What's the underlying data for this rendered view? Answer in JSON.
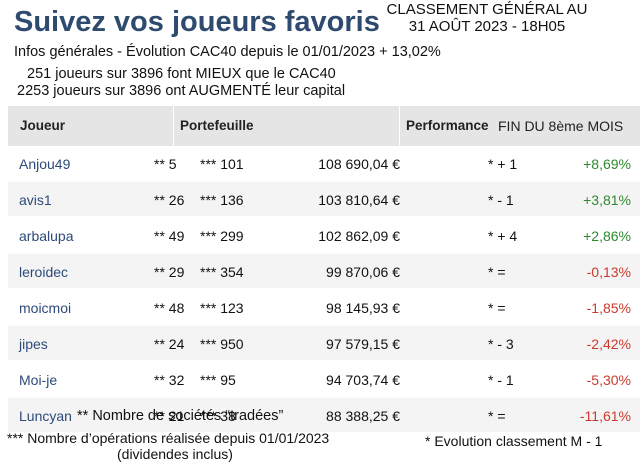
{
  "header": {
    "title": "Suivez vos joueurs favoris",
    "classement_line1": "CLASSEMENT GÉNÉRAL AU",
    "classement_line2": "31 AOÛT 2023 - 18H05",
    "info_line": "Infos générales - Évolution CAC40 depuis le 01/01/2023 + 13,02%",
    "stat_mieux": "251 joueurs sur 3896 font MIEUX que le CAC40",
    "stat_augmente": "2253 joueurs sur 3896 ont AUGMENTÉ leur capital"
  },
  "table": {
    "columns": {
      "joueur": "Joueur",
      "portefeuille": "Portefeuille",
      "performance": "Performance",
      "fin_mois": "FIN DU 8ème MOIS"
    },
    "rows": [
      {
        "name": "Anjou49",
        "societes": "**  5",
        "operations": "*** 101",
        "value": "108 690,04 €",
        "classement": "* + 1",
        "perf": "+8,69%",
        "trend": "pos"
      },
      {
        "name": "avis1",
        "societes": "** 26",
        "operations": "*** 136",
        "value": "103 810,64 €",
        "classement": "* - 1",
        "perf": "+3,81%",
        "trend": "pos"
      },
      {
        "name": "arbalupa",
        "societes": "** 49",
        "operations": "*** 299",
        "value": "102 862,09 €",
        "classement": "* + 4",
        "perf": "+2,86%",
        "trend": "pos"
      },
      {
        "name": "leroidec",
        "societes": "**  29",
        "operations": "*** 354",
        "value": "99 870,06 €",
        "classement": "*  =",
        "perf": "-0,13%",
        "trend": "neg"
      },
      {
        "name": "moicmoi",
        "societes": "**  48",
        "operations": "*** 123",
        "value": "98 145,93 €",
        "classement": "*  =",
        "perf": "-1,85%",
        "trend": "neg"
      },
      {
        "name": "jipes",
        "societes": "**  24",
        "operations": "*** 950",
        "value": "97 579,15 €",
        "classement": "* - 3",
        "perf": "-2,42%",
        "trend": "neg"
      },
      {
        "name": "Moi-je",
        "societes": "**   32",
        "operations": "***  95",
        "value": "94 703,74 €",
        "classement": "* - 1",
        "perf": "-5,30%",
        "trend": "neg"
      },
      {
        "name": "Luncyan",
        "societes": "**  21",
        "operations": "*** 38",
        "value": "88 388,25 €",
        "classement": "*  =",
        "perf": "-11,61%",
        "trend": "neg"
      }
    ]
  },
  "footnotes": {
    "societes": "** Nombre de sociétés “tradées”",
    "operations_line1": "*** Nombre d’opérations réalisée depuis 01/01/2023",
    "operations_line2": "(dividendes inclus)",
    "classement": "* Evolution classement M - 1"
  },
  "colors": {
    "title": "#2e4a6e",
    "positive": "#2f8a2f",
    "negative": "#cc3a2e",
    "header_bg": "#e5e5e5",
    "row_alt_bg": "#f4f4f4"
  }
}
